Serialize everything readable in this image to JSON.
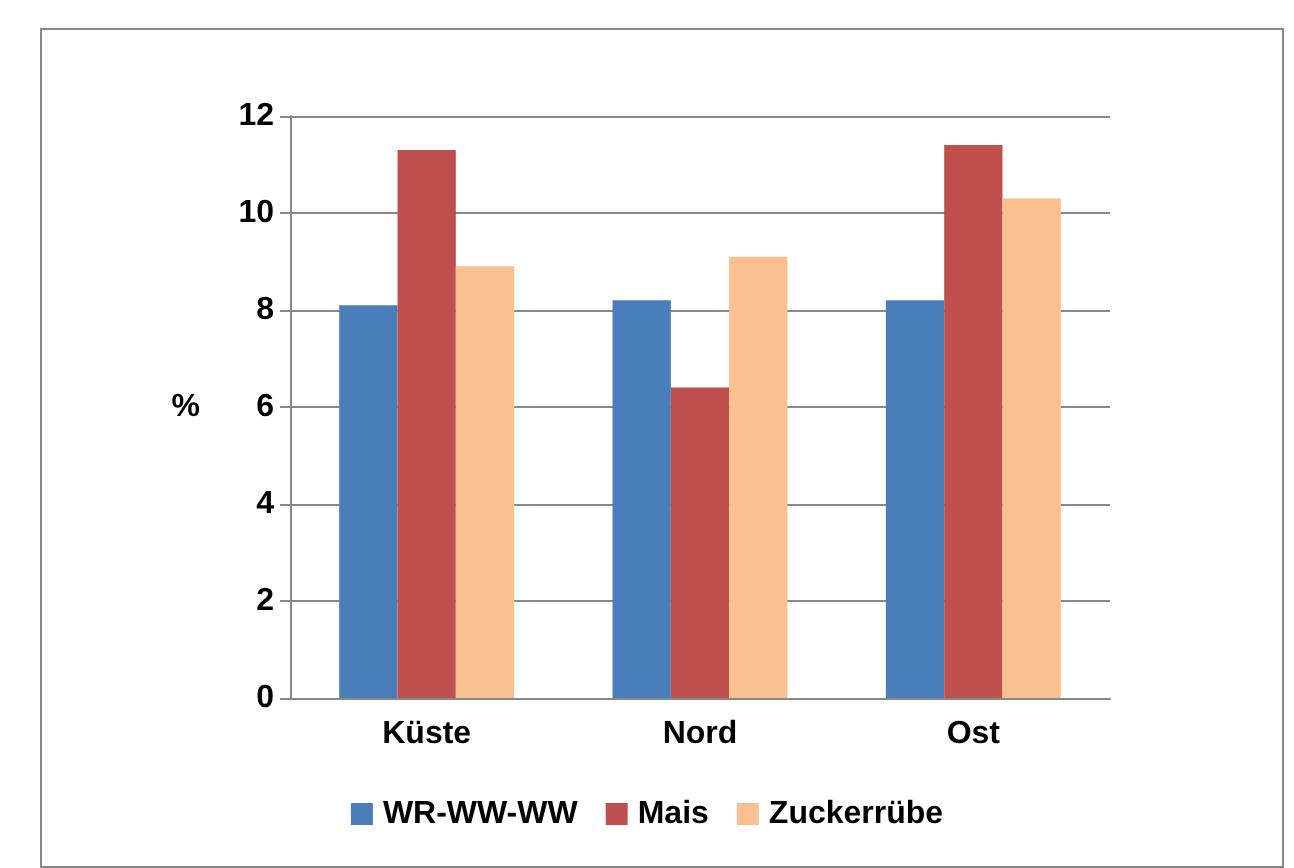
{
  "chart_data": {
    "type": "bar",
    "ylabel": "%",
    "categories": [
      "Küste",
      "Nord",
      "Ost"
    ],
    "series": [
      {
        "name": "WR-WW-WW",
        "color": "#4a7ebb",
        "values": [
          8.1,
          8.2,
          8.2
        ]
      },
      {
        "name": "Mais",
        "color": "#c0504d",
        "values": [
          11.3,
          6.4,
          11.4
        ]
      },
      {
        "name": "Zuckerrübe",
        "color": "#fac090",
        "values": [
          8.9,
          9.1,
          10.3
        ]
      }
    ],
    "ylim": [
      0,
      12
    ],
    "yticks": [
      0,
      2,
      4,
      6,
      8,
      10,
      12
    ],
    "grid": "y",
    "legend": "bottom"
  }
}
